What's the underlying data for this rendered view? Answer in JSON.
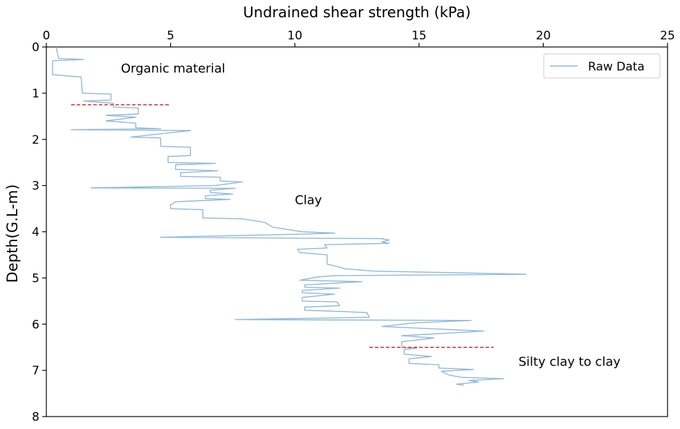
{
  "chart_data": {
    "type": "line",
    "title": "",
    "xlabel": "Undrained shear strength (kPa)",
    "ylabel": "Depth(G.L-m)",
    "xlim": [
      0,
      25
    ],
    "ylim": [
      0,
      8
    ],
    "y_inverted": true,
    "x_axis_position": "top",
    "grid": false,
    "xticks": [
      0,
      5,
      10,
      15,
      20,
      25
    ],
    "yticks": [
      0,
      1,
      2,
      3,
      4,
      5,
      6,
      7,
      8
    ],
    "legend": {
      "position": "top-right",
      "entries": [
        "Raw Data"
      ]
    },
    "series": [
      {
        "name": "Raw Data",
        "color": "#8fb8d8",
        "points": [
          [
            0.4,
            0.0
          ],
          [
            0.45,
            0.15
          ],
          [
            0.5,
            0.25
          ],
          [
            1.5,
            0.27
          ],
          [
            0.25,
            0.3
          ],
          [
            0.25,
            0.6
          ],
          [
            1.4,
            0.65
          ],
          [
            1.45,
            1.0
          ],
          [
            2.6,
            1.02
          ],
          [
            2.6,
            1.15
          ],
          [
            1.5,
            1.17
          ],
          [
            2.7,
            1.22
          ],
          [
            2.7,
            1.3
          ],
          [
            3.7,
            1.32
          ],
          [
            3.7,
            1.45
          ],
          [
            2.4,
            1.48
          ],
          [
            3.6,
            1.52
          ],
          [
            2.4,
            1.6
          ],
          [
            3.6,
            1.65
          ],
          [
            3.6,
            1.75
          ],
          [
            4.6,
            1.77
          ],
          [
            1.0,
            1.79
          ],
          [
            5.8,
            1.81
          ],
          [
            3.4,
            1.95
          ],
          [
            4.6,
            1.97
          ],
          [
            4.6,
            2.15
          ],
          [
            5.8,
            2.17
          ],
          [
            5.8,
            2.35
          ],
          [
            4.9,
            2.37
          ],
          [
            4.9,
            2.5
          ],
          [
            6.8,
            2.52
          ],
          [
            5.2,
            2.55
          ],
          [
            5.2,
            2.65
          ],
          [
            6.9,
            2.68
          ],
          [
            5.4,
            2.72
          ],
          [
            5.4,
            2.8
          ],
          [
            7.0,
            2.82
          ],
          [
            7.0,
            2.9
          ],
          [
            7.9,
            2.92
          ],
          [
            6.8,
            3.0
          ],
          [
            1.8,
            3.05
          ],
          [
            7.6,
            3.06
          ],
          [
            6.6,
            3.1
          ],
          [
            6.6,
            3.15
          ],
          [
            7.5,
            3.18
          ],
          [
            6.4,
            3.22
          ],
          [
            6.4,
            3.28
          ],
          [
            7.4,
            3.3
          ],
          [
            5.2,
            3.35
          ],
          [
            5.0,
            3.42
          ],
          [
            5.0,
            3.5
          ],
          [
            6.3,
            3.52
          ],
          [
            6.3,
            3.7
          ],
          [
            7.9,
            3.72
          ],
          [
            8.8,
            3.8
          ],
          [
            9.1,
            3.9
          ],
          [
            10.3,
            4.0
          ],
          [
            11.6,
            4.03
          ],
          [
            10.4,
            4.05
          ],
          [
            4.6,
            4.12
          ],
          [
            13.5,
            4.15
          ],
          [
            13.8,
            4.18
          ],
          [
            13.5,
            4.22
          ],
          [
            13.8,
            4.25
          ],
          [
            11.2,
            4.28
          ],
          [
            11.3,
            4.35
          ],
          [
            10.1,
            4.38
          ],
          [
            10.2,
            4.45
          ],
          [
            11.3,
            4.5
          ],
          [
            11.3,
            4.7
          ],
          [
            11.7,
            4.75
          ],
          [
            12.0,
            4.8
          ],
          [
            13.1,
            4.85
          ],
          [
            19.3,
            4.92
          ],
          [
            11.6,
            4.95
          ],
          [
            10.9,
            4.98
          ],
          [
            10.2,
            5.05
          ],
          [
            12.7,
            5.08
          ],
          [
            10.4,
            5.15
          ],
          [
            10.4,
            5.2
          ],
          [
            11.8,
            5.22
          ],
          [
            10.3,
            5.27
          ],
          [
            10.3,
            5.32
          ],
          [
            11.6,
            5.35
          ],
          [
            10.3,
            5.42
          ],
          [
            10.3,
            5.5
          ],
          [
            11.7,
            5.52
          ],
          [
            11.8,
            5.6
          ],
          [
            10.4,
            5.63
          ],
          [
            10.4,
            5.7
          ],
          [
            11.6,
            5.72
          ],
          [
            12.9,
            5.75
          ],
          [
            13.0,
            5.85
          ],
          [
            7.6,
            5.9
          ],
          [
            17.1,
            5.92
          ],
          [
            14.9,
            5.97
          ],
          [
            13.5,
            6.05
          ],
          [
            17.6,
            6.15
          ],
          [
            14.3,
            6.25
          ],
          [
            15.6,
            6.3
          ],
          [
            14.3,
            6.38
          ],
          [
            14.3,
            6.5
          ],
          [
            14.9,
            6.52
          ],
          [
            14.4,
            6.55
          ],
          [
            14.4,
            6.65
          ],
          [
            15.5,
            6.7
          ],
          [
            14.6,
            6.75
          ],
          [
            14.6,
            6.85
          ],
          [
            15.8,
            6.88
          ],
          [
            15.8,
            6.95
          ],
          [
            17.2,
            6.98
          ],
          [
            15.9,
            7.02
          ],
          [
            16.2,
            7.1
          ],
          [
            16.7,
            7.15
          ],
          [
            18.4,
            7.18
          ],
          [
            17.0,
            7.22
          ],
          [
            17.4,
            7.25
          ],
          [
            16.5,
            7.3
          ],
          [
            16.8,
            7.32
          ]
        ]
      }
    ],
    "boundaries": [
      {
        "x_start": 1.0,
        "x_end": 5.0,
        "depth": 1.25,
        "color": "#d62728",
        "style": "dashed"
      },
      {
        "x_start": 13.0,
        "x_end": 18.0,
        "depth": 6.5,
        "color": "#d62728",
        "style": "dashed"
      }
    ],
    "annotations": [
      {
        "text": "Organic material",
        "x": 3.0,
        "y": 0.55
      },
      {
        "text": "Clay",
        "x": 10.0,
        "y": 3.4
      },
      {
        "text": "Silty clay to clay",
        "x": 19.0,
        "y": 6.9
      }
    ]
  }
}
